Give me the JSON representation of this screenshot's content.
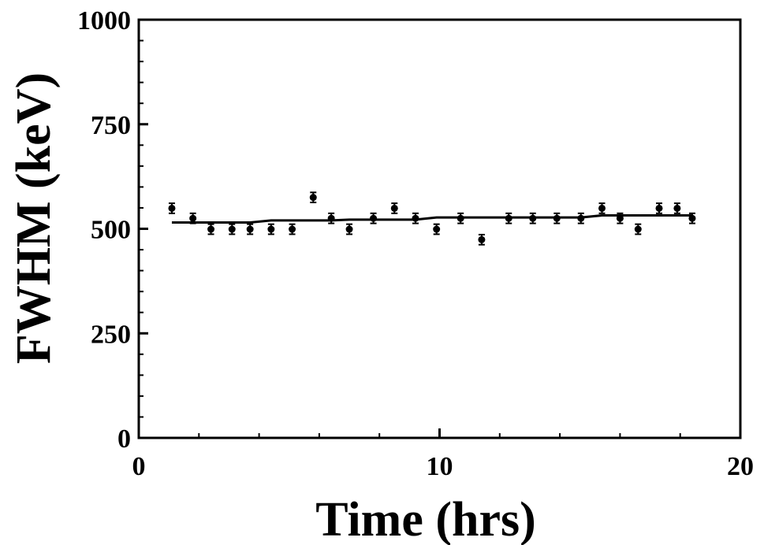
{
  "chart_data": {
    "type": "scatter",
    "title": "",
    "xlabel": "Time (hrs)",
    "ylabel": "FWHM (keV)",
    "xlim": [
      0,
      20
    ],
    "ylim": [
      0,
      1000
    ],
    "x_ticks": [
      0,
      10,
      20
    ],
    "y_ticks": [
      0,
      250,
      500,
      750,
      1000
    ],
    "grid": false,
    "legend": "none",
    "series": [
      {
        "type": "scatter",
        "x": [
          1.1,
          1.8,
          2.4,
          3.1,
          3.7,
          4.4,
          5.1,
          5.8,
          6.4,
          7.0,
          7.8,
          8.5,
          9.2,
          9.9,
          10.7,
          11.4,
          12.3,
          13.1,
          13.9,
          14.7,
          15.4,
          16.0,
          16.6,
          17.3,
          17.9,
          18.4
        ],
        "y": [
          549,
          525,
          499,
          499,
          499,
          499,
          499,
          575,
          525,
          499,
          525,
          549,
          525,
          499,
          525,
          474,
          525,
          525,
          525,
          525,
          549,
          525,
          499,
          549,
          549,
          525
        ],
        "err": 12,
        "color": "#000000"
      },
      {
        "type": "line",
        "x": [
          1.1,
          3.7,
          4.4,
          6.4,
          7.0,
          9.2,
          9.9,
          14.7,
          15.4,
          18.4
        ],
        "y": [
          515,
          515,
          520,
          520,
          522,
          522,
          527,
          527,
          532,
          532
        ],
        "color": "#000000"
      }
    ]
  }
}
